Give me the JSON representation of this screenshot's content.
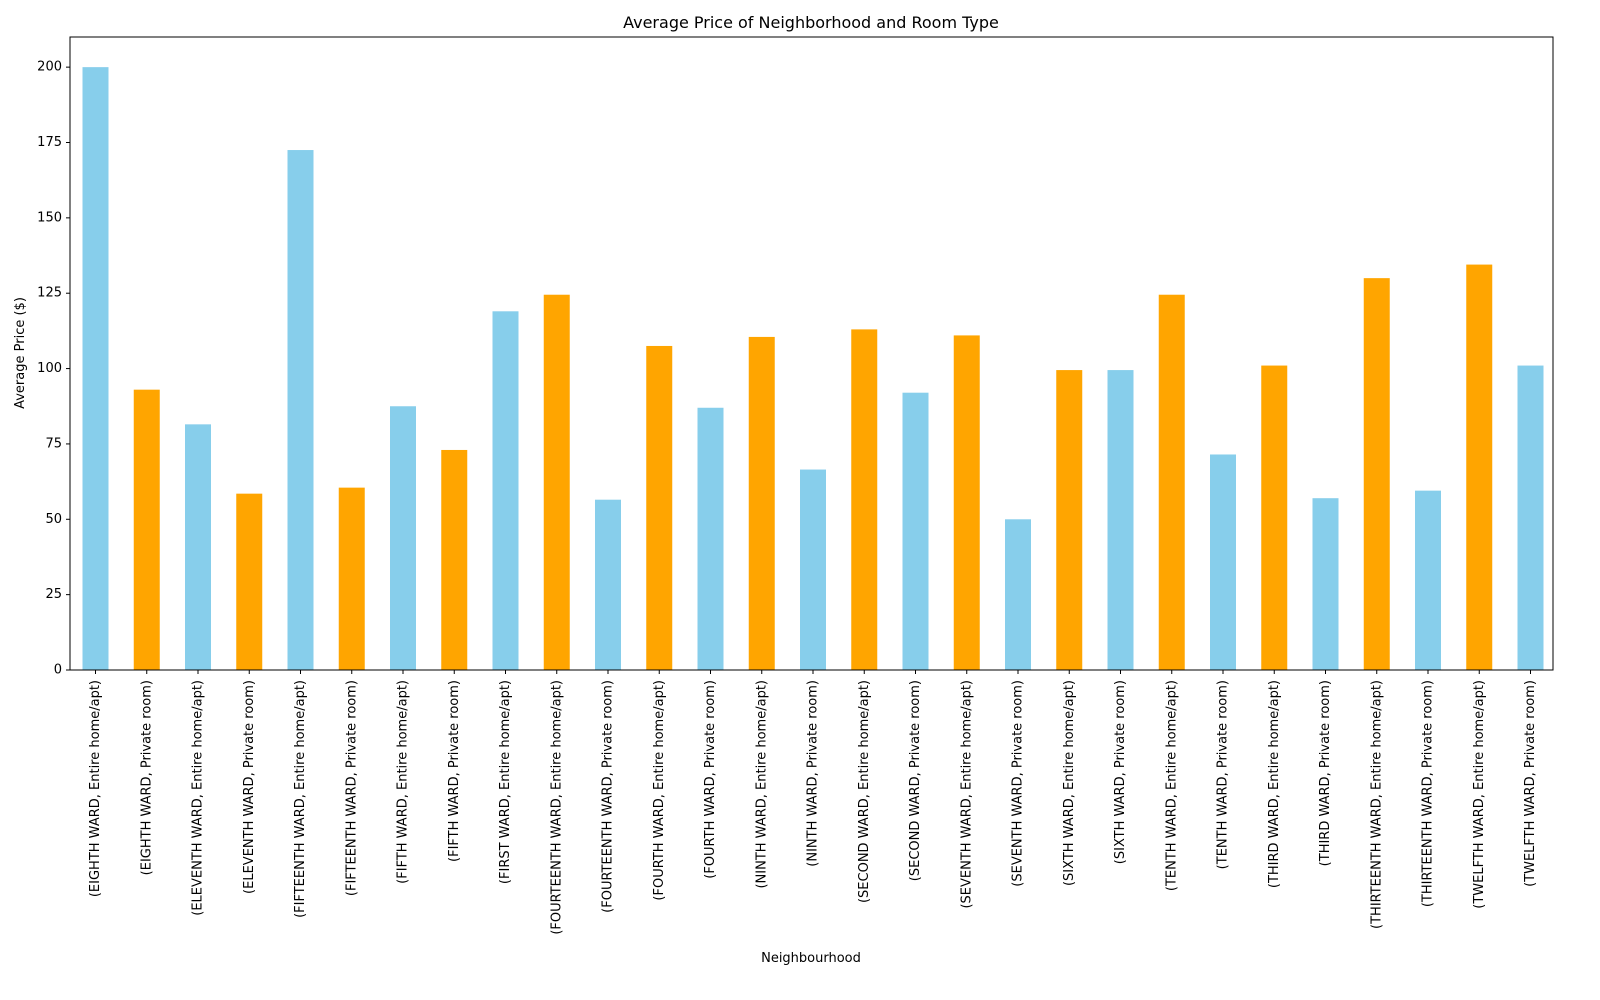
{
  "chart_data": {
    "type": "bar",
    "title": "Average Price of Neighborhood and Room Type",
    "xlabel": "Neighbourhood",
    "ylabel": "Average Price ($)",
    "ylim": [
      0,
      210
    ],
    "yticks": [
      0,
      25,
      50,
      75,
      100,
      125,
      150,
      175,
      200
    ],
    "grid": false,
    "legend": "none",
    "bar_colors": [
      "#87CEEB",
      "#FFA500"
    ],
    "categories": [
      "(EIGHTH WARD, Entire home/apt)",
      "(EIGHTH WARD, Private room)",
      "(ELEVENTH WARD, Entire home/apt)",
      "(ELEVENTH WARD, Private room)",
      "(FIFTEENTH WARD, Entire home/apt)",
      "(FIFTEENTH WARD, Private room)",
      "(FIFTH WARD, Entire home/apt)",
      "(FIFTH WARD, Private room)",
      "(FIRST WARD, Entire home/apt)",
      "(FOURTEENTH WARD, Entire home/apt)",
      "(FOURTEENTH WARD, Private room)",
      "(FOURTH WARD, Entire home/apt)",
      "(FOURTH WARD, Private room)",
      "(NINTH WARD, Entire home/apt)",
      "(NINTH WARD, Private room)",
      "(SECOND WARD, Entire home/apt)",
      "(SECOND WARD, Private room)",
      "(SEVENTH WARD, Entire home/apt)",
      "(SEVENTH WARD, Private room)",
      "(SIXTH WARD, Entire home/apt)",
      "(SIXTH WARD, Private room)",
      "(TENTH WARD, Entire home/apt)",
      "(TENTH WARD, Private room)",
      "(THIRD WARD, Entire home/apt)",
      "(THIRD WARD, Private room)",
      "(THIRTEENTH WARD, Entire home/apt)",
      "(THIRTEENTH WARD, Private room)",
      "(TWELFTH WARD, Entire home/apt)",
      "(TWELFTH WARD, Private room)"
    ],
    "values": [
      200,
      93,
      81.5,
      58.5,
      172.5,
      60.5,
      87.5,
      73,
      119,
      124.5,
      56.5,
      107.5,
      87,
      110.5,
      66.5,
      113,
      92,
      111,
      50,
      99.5,
      99.5,
      124.5,
      71.5,
      101,
      57,
      130,
      59.5,
      134.5,
      101
    ]
  }
}
